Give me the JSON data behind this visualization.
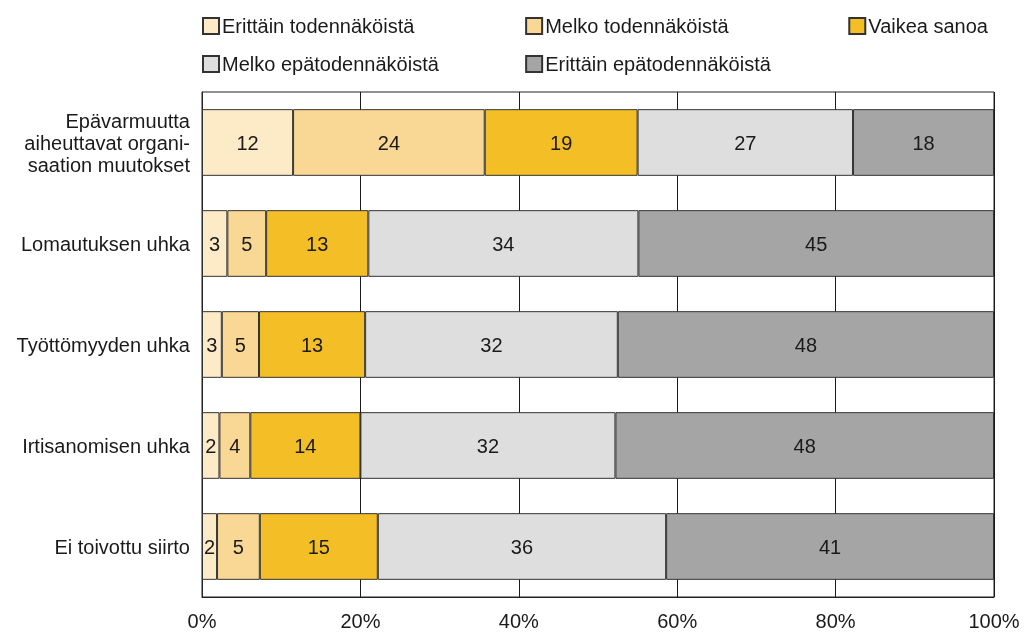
{
  "chart_data": {
    "type": "bar",
    "orientation": "horizontal",
    "stacked": true,
    "categories": [
      "Epävarmuutta aiheuttavat organi-saation muutokset",
      "Lomautuksen uhka",
      "Työttömyyden uhka",
      "Irtisanomisen uhka",
      "Ei toivottu siirto"
    ],
    "series": [
      {
        "name": "Erittäin todennäköistä",
        "color": "#fdebc8",
        "values": [
          11.5,
          3.2,
          2.5,
          2.2,
          1.9
        ],
        "value_labels": [
          "12",
          "3",
          "3",
          "2",
          "2"
        ]
      },
      {
        "name": "Melko todennäköistä",
        "color": "#f9d794",
        "values": [
          24.2,
          4.9,
          4.7,
          3.9,
          5.4
        ],
        "value_labels": [
          "24",
          "5",
          "5",
          "4",
          "5"
        ]
      },
      {
        "name": "Vaikea sanoa",
        "color": "#f3be26",
        "values": [
          19.3,
          12.9,
          13.4,
          13.9,
          14.9
        ],
        "value_labels": [
          "19",
          "13",
          "13",
          "14",
          "15"
        ]
      },
      {
        "name": "Melko epätodennäköistä",
        "color": "#dedede",
        "values": [
          27.2,
          34.1,
          31.9,
          32.2,
          36.4
        ],
        "value_labels": [
          "27",
          "34",
          "32",
          "32",
          "36"
        ]
      },
      {
        "name": "Erittäin epätodennäköistä",
        "color": "#a5a5a5",
        "values": [
          17.8,
          44.9,
          47.5,
          47.8,
          41.4
        ],
        "value_labels": [
          "18",
          "45",
          "48",
          "48",
          "41"
        ]
      }
    ],
    "xlim": [
      0,
      100
    ],
    "xticks": [
      {
        "value": 0,
        "label": "0%"
      },
      {
        "value": 20,
        "label": "20%"
      },
      {
        "value": 40,
        "label": "40%"
      },
      {
        "value": 60,
        "label": "60%"
      },
      {
        "value": 80,
        "label": "80%"
      },
      {
        "value": 100,
        "label": "100%"
      }
    ],
    "grid": "x",
    "legend": "top"
  }
}
